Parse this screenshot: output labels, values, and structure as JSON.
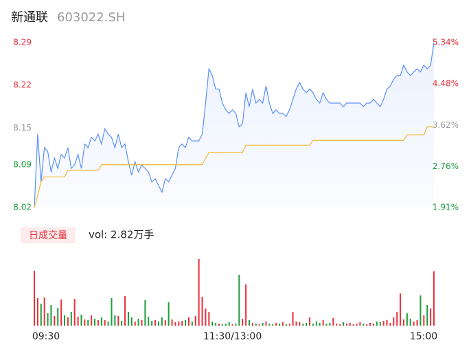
{
  "chart_data": {
    "type": "intraday",
    "title": "新通联",
    "subtitle": "603022.SH",
    "ylim": [
      8.02,
      8.29
    ],
    "yticks": [
      8.29,
      8.22,
      8.15,
      8.09,
      8.02
    ],
    "y2lim": [
      1.91,
      5.34
    ],
    "y2ticks": [
      {
        "value": 5.34,
        "label": "5.34%"
      },
      {
        "value": 4.48,
        "label": "4.48%"
      },
      {
        "value": 3.62,
        "label": "3.62%"
      },
      {
        "value": 2.76,
        "label": "2.76%"
      },
      {
        "value": 1.91,
        "label": "1.91%"
      }
    ],
    "tick_colors": [
      "#e8303a",
      "#e8303a",
      "#999999",
      "#1a9e3a",
      "#1a9e3a"
    ],
    "x_labels": [
      "09:30",
      "11:30/13:00",
      "15:00"
    ],
    "up_color": "#e8303a",
    "down_color": "#1a9e3a",
    "volume_legend": "日成交量",
    "volume_label": "vol: 2.82万手",
    "series": [
      {
        "color": "#5b8ff9",
        "values": [
          8.02,
          8.14,
          8.062,
          8.118,
          8.112,
          8.078,
          8.101,
          8.084,
          8.107,
          8.101,
          8.118,
          8.084,
          8.09,
          8.107,
          8.084,
          8.124,
          8.118,
          8.135,
          8.129,
          8.14,
          8.124,
          8.149,
          8.14,
          8.135,
          8.118,
          8.14,
          8.118,
          8.124,
          8.095,
          8.073,
          8.095,
          8.078,
          8.09,
          8.084,
          8.078,
          8.062,
          8.067,
          8.056,
          8.045,
          8.067,
          8.062,
          8.073,
          8.084,
          8.118,
          8.124,
          8.118,
          8.135,
          8.129,
          8.129,
          8.129,
          8.14,
          8.191,
          8.247,
          8.236,
          8.214,
          8.214,
          8.191,
          8.18,
          8.174,
          8.18,
          8.174,
          8.152,
          8.157,
          8.208,
          8.185,
          8.214,
          8.191,
          8.197,
          8.191,
          8.219,
          8.191,
          8.174,
          8.18,
          8.174,
          8.174,
          8.169,
          8.18,
          8.197,
          8.214,
          8.225,
          8.214,
          8.208,
          8.214,
          8.208,
          8.197,
          8.191,
          8.208,
          8.197,
          8.191,
          8.191,
          8.191,
          8.191,
          8.185,
          8.191,
          8.191,
          8.191,
          8.191,
          8.191,
          8.185,
          8.191,
          8.191,
          8.197,
          8.191,
          8.185,
          8.197,
          8.214,
          8.219,
          8.23,
          8.236,
          8.236,
          8.253,
          8.242,
          8.236,
          8.242,
          8.247,
          8.242,
          8.253,
          8.247,
          8.253,
          8.29
        ]
      },
      {
        "color": "#f5b82e",
        "values": [
          8.02,
          8.04,
          8.062,
          8.07,
          8.07,
          8.07,
          8.07,
          8.07,
          8.07,
          8.07,
          8.081,
          8.081,
          8.081,
          8.081,
          8.081,
          8.081,
          8.081,
          8.081,
          8.081,
          8.081,
          8.09,
          8.09,
          8.09,
          8.09,
          8.09,
          8.09,
          8.09,
          8.09,
          8.09,
          8.09,
          8.09,
          8.09,
          8.09,
          8.09,
          8.09,
          8.09,
          8.09,
          8.09,
          8.09,
          8.09,
          8.09,
          8.09,
          8.09,
          8.09,
          8.09,
          8.09,
          8.09,
          8.09,
          8.09,
          8.09,
          8.09,
          8.101,
          8.11,
          8.11,
          8.11,
          8.11,
          8.11,
          8.11,
          8.11,
          8.11,
          8.11,
          8.11,
          8.11,
          8.122,
          8.122,
          8.122,
          8.122,
          8.122,
          8.122,
          8.122,
          8.122,
          8.122,
          8.122,
          8.122,
          8.122,
          8.122,
          8.122,
          8.122,
          8.122,
          8.122,
          8.122,
          8.122,
          8.122,
          8.13,
          8.13,
          8.13,
          8.13,
          8.13,
          8.13,
          8.13,
          8.13,
          8.13,
          8.13,
          8.13,
          8.13,
          8.13,
          8.13,
          8.13,
          8.13,
          8.13,
          8.13,
          8.13,
          8.13,
          8.13,
          8.13,
          8.13,
          8.13,
          8.13,
          8.13,
          8.13,
          8.13,
          8.139,
          8.139,
          8.139,
          8.139,
          8.139,
          8.139,
          8.152,
          8.152,
          8.152
        ]
      }
    ],
    "volumes": [
      800,
      400,
      320,
      410,
      180,
      300,
      140,
      260,
      380,
      150,
      120,
      200,
      390,
      130,
      160,
      90,
      80,
      150,
      100,
      80,
      120,
      80,
      60,
      400,
      150,
      140,
      70,
      430,
      200,
      120,
      60,
      100,
      80,
      370,
      130,
      70,
      80,
      60,
      120,
      80,
      340,
      90,
      50,
      60,
      70,
      80,
      120,
      60,
      140,
      970,
      420,
      250,
      200,
      60,
      40,
      30,
      20,
      30,
      50,
      20,
      30,
      740,
      100,
      600,
      80,
      40,
      30,
      20,
      40,
      60,
      30,
      20,
      40,
      30,
      50,
      20,
      30,
      200,
      60,
      50,
      30,
      40,
      120,
      30,
      60,
      40,
      80,
      30,
      40,
      110,
      30,
      20,
      50,
      30,
      40,
      20,
      30,
      50,
      30,
      20,
      40,
      30,
      60,
      50,
      70,
      80,
      40,
      120,
      200,
      470,
      90,
      180,
      100,
      60,
      80,
      440,
      150,
      300,
      250,
      790
    ]
  }
}
